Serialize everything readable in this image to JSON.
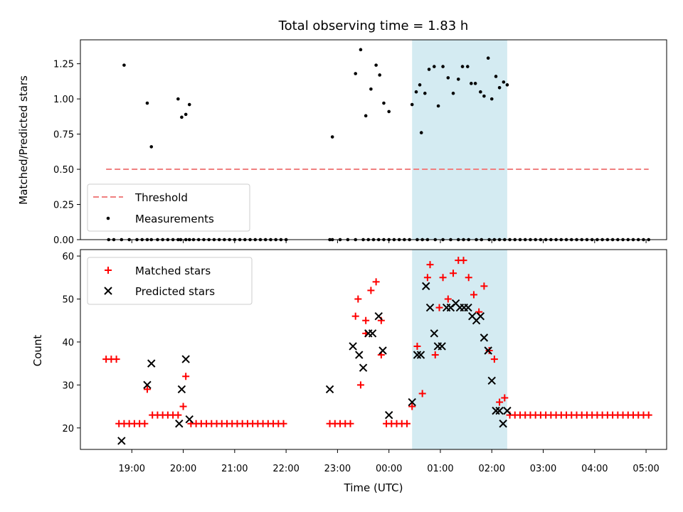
{
  "chart_data": [
    {
      "type": "scatter",
      "title": "Total observing time = 1.83 h",
      "xlabel": "",
      "ylabel": "Matched/Predicted stars",
      "ylim": [
        0,
        1.42
      ],
      "yticks": [
        "0.00",
        "0.25",
        "0.50",
        "0.75",
        "1.00",
        "1.25"
      ],
      "ytick_values": [
        0,
        0.25,
        0.5,
        0.75,
        1.0,
        1.25
      ],
      "xlim_hours": [
        18.0,
        29.4
      ],
      "shaded_region_hours": [
        24.45,
        26.3
      ],
      "shade_color": "#d4ebf2",
      "legend_position": "lower-left",
      "threshold": {
        "name": "Threshold",
        "value": 0.5,
        "x_range_hours": [
          18.5,
          29.05
        ],
        "color": "#f08080"
      },
      "measurements": {
        "name": "Measurements",
        "color": "#000000",
        "x": [
          18.55,
          18.65,
          18.8,
          18.95,
          19.1,
          19.2,
          19.3,
          19.38,
          19.5,
          19.6,
          19.7,
          19.8,
          19.9,
          19.95,
          20.05,
          20.12,
          20.2,
          20.3,
          20.4,
          20.5,
          20.6,
          20.7,
          20.8,
          20.9,
          21.0,
          21.1,
          21.2,
          21.3,
          21.4,
          21.5,
          21.6,
          21.7,
          21.8,
          21.9,
          22.0,
          22.85,
          22.9,
          23.05,
          23.2,
          23.35,
          23.5,
          23.6,
          23.7,
          23.8,
          23.9,
          24.0,
          24.1,
          24.2,
          24.3,
          24.4,
          24.55,
          24.65,
          24.75,
          24.9,
          25.05,
          25.2,
          25.35,
          25.45,
          25.55,
          25.7,
          25.8,
          25.95,
          26.05,
          26.15,
          26.25,
          26.35,
          26.45,
          26.55,
          26.65,
          26.75,
          26.85,
          26.95,
          27.05,
          27.15,
          27.25,
          27.35,
          27.45,
          27.55,
          27.65,
          27.75,
          27.85,
          27.95,
          28.05,
          28.15,
          28.25,
          28.35,
          28.45,
          28.55,
          28.65,
          28.75,
          28.85,
          28.95,
          29.05,
          18.85,
          19.3,
          19.38,
          19.9,
          19.97,
          20.05,
          20.12,
          22.9,
          23.35,
          23.45,
          23.55,
          23.65,
          23.75,
          23.82,
          23.9,
          24.0,
          24.45,
          24.53,
          24.63,
          24.7,
          24.78,
          24.88,
          24.96,
          25.05,
          25.15,
          25.25,
          25.35,
          25.43,
          25.53,
          25.6,
          25.68,
          25.78,
          25.85,
          25.93,
          26.0,
          26.08,
          26.15,
          26.23,
          26.3,
          24.6
        ],
        "y": [
          0,
          0,
          0,
          0,
          0,
          0,
          0,
          0,
          0,
          0,
          0,
          0,
          0,
          0,
          0,
          0,
          0,
          0,
          0,
          0,
          0,
          0,
          0,
          0,
          0,
          0,
          0,
          0,
          0,
          0,
          0,
          0,
          0,
          0,
          0,
          0,
          0,
          0,
          0,
          0,
          0,
          0,
          0,
          0,
          0,
          0,
          0,
          0,
          0,
          0,
          0,
          0,
          0,
          0,
          0,
          0,
          0,
          0,
          0,
          0,
          0,
          0,
          0,
          0,
          0,
          0,
          0,
          0,
          0,
          0,
          0,
          0,
          0,
          0,
          0,
          0,
          0,
          0,
          0,
          0,
          0,
          0,
          0,
          0,
          0,
          0,
          0,
          0,
          0,
          0,
          0,
          0,
          0,
          1.24,
          0.97,
          0.66,
          1.0,
          0.87,
          0.89,
          0.96,
          0.73,
          1.18,
          1.35,
          0.88,
          1.07,
          1.24,
          1.17,
          0.97,
          0.91,
          0.96,
          1.05,
          0.76,
          1.04,
          1.21,
          1.23,
          0.95,
          1.23,
          1.15,
          1.04,
          1.14,
          1.23,
          1.23,
          1.11,
          1.11,
          1.05,
          1.02,
          1.29,
          1.0,
          1.16,
          1.08,
          1.12,
          1.1,
          1.1
        ]
      }
    },
    {
      "type": "scatter",
      "title": "",
      "xlabel": "Time (UTC)",
      "ylabel": "Count",
      "ylim": [
        15,
        61.5
      ],
      "yticks": [
        "20",
        "30",
        "40",
        "50",
        "60"
      ],
      "ytick_values": [
        20,
        30,
        40,
        50,
        60
      ],
      "xticks": [
        "19:00",
        "20:00",
        "21:00",
        "22:00",
        "23:00",
        "00:00",
        "01:00",
        "02:00",
        "03:00",
        "04:00",
        "05:00"
      ],
      "xtick_hours": [
        19,
        20,
        21,
        22,
        23,
        24,
        25,
        26,
        27,
        28,
        29
      ],
      "xlim_hours": [
        18.0,
        29.4
      ],
      "shaded_region_hours": [
        24.45,
        26.3
      ],
      "legend_position": "upper-left",
      "series": [
        {
          "name": "Matched stars",
          "marker": "plus",
          "color": "#ff0000",
          "x": [
            18.5,
            18.6,
            18.7,
            18.75,
            18.85,
            18.95,
            19.05,
            19.15,
            19.25,
            19.3,
            19.4,
            19.5,
            19.6,
            19.7,
            19.8,
            19.9,
            20.0,
            20.05,
            20.15,
            20.25,
            20.35,
            20.45,
            20.55,
            20.65,
            20.75,
            20.85,
            20.95,
            21.05,
            21.15,
            21.25,
            21.35,
            21.45,
            21.55,
            21.65,
            21.75,
            21.85,
            21.95,
            22.85,
            22.95,
            23.05,
            23.15,
            23.25,
            23.35,
            23.45,
            23.55,
            23.65,
            23.75,
            23.85,
            23.95,
            24.05,
            24.15,
            24.25,
            24.35,
            24.45,
            24.55,
            24.65,
            24.75,
            24.8,
            24.9,
            24.98,
            25.05,
            25.15,
            25.25,
            25.35,
            25.45,
            25.55,
            25.65,
            25.75,
            25.85,
            25.95,
            26.05,
            26.15,
            26.25,
            26.35,
            26.45,
            26.55,
            26.65,
            26.75,
            26.85,
            26.95,
            27.05,
            27.15,
            27.25,
            27.35,
            27.45,
            27.55,
            27.65,
            27.75,
            27.85,
            27.95,
            28.05,
            28.15,
            28.25,
            28.35,
            28.45,
            28.55,
            28.65,
            28.75,
            28.85,
            28.95,
            29.05,
            23.4,
            23.55,
            23.85
          ],
          "y": [
            36,
            36,
            36,
            21,
            21,
            21,
            21,
            21,
            21,
            29,
            23,
            23,
            23,
            23,
            23,
            23,
            25,
            32,
            21,
            21,
            21,
            21,
            21,
            21,
            21,
            21,
            21,
            21,
            21,
            21,
            21,
            21,
            21,
            21,
            21,
            21,
            21,
            21,
            21,
            21,
            21,
            21,
            46,
            30,
            45,
            52,
            54,
            37,
            21,
            21,
            21,
            21,
            21,
            25,
            39,
            28,
            55,
            58,
            37,
            48,
            55,
            50,
            56,
            59,
            59,
            55,
            51,
            47,
            53,
            38,
            36,
            26,
            27,
            23,
            23,
            23,
            23,
            23,
            23,
            23,
            23,
            23,
            23,
            23,
            23,
            23,
            23,
            23,
            23,
            23,
            23,
            23,
            23,
            23,
            23,
            23,
            23,
            23,
            23,
            23,
            23,
            50,
            42,
            45
          ]
        },
        {
          "name": "Predicted stars",
          "marker": "x",
          "color": "#000000",
          "x": [
            18.8,
            19.3,
            19.38,
            19.92,
            19.97,
            20.05,
            20.12,
            22.85,
            23.3,
            23.42,
            23.5,
            23.6,
            23.68,
            23.8,
            23.88,
            24.0,
            24.45,
            24.55,
            24.62,
            24.72,
            24.8,
            24.88,
            24.95,
            25.03,
            25.12,
            25.2,
            25.3,
            25.38,
            25.46,
            25.54,
            25.62,
            25.7,
            25.78,
            25.85,
            25.93,
            26.0,
            26.08,
            26.15,
            26.22,
            26.3
          ],
          "y": [
            17,
            30,
            35,
            21,
            29,
            36,
            22,
            29,
            39,
            37,
            34,
            42,
            42,
            46,
            38,
            23,
            26,
            37,
            37,
            53,
            48,
            42,
            39,
            39,
            48,
            48,
            49,
            48,
            48,
            48,
            46,
            45,
            46,
            41,
            38,
            31,
            24,
            24,
            21,
            24
          ]
        }
      ]
    }
  ]
}
